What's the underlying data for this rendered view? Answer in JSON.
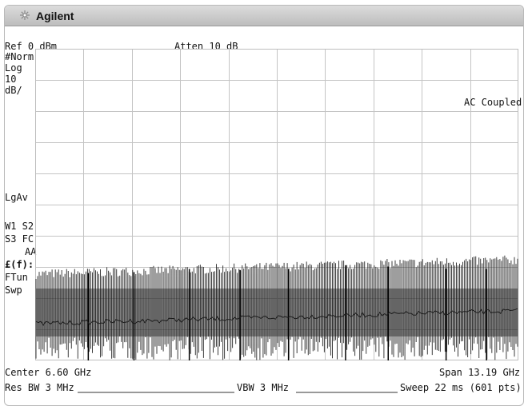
{
  "window": {
    "brand": "Agilent",
    "brand_icon": "sunburst-icon"
  },
  "header": {
    "ref_level": "Ref 0 dBm",
    "attenuation": "Atten 10 dB"
  },
  "left_panel": {
    "det_mode": "#Norm",
    "scale_type": "Log",
    "scale_value": "10",
    "scale_unit": "dB/",
    "avg_mode": "LgAv",
    "trace_line1": "W1  S2",
    "trace_line2": "S3  FC",
    "trace_line3": "AA",
    "func_label": "£(f):",
    "ftun_label": "FTun",
    "swp_label": "Swp"
  },
  "annotations": {
    "coupling": "AC Coupled"
  },
  "footer": {
    "center": "Center 6.60 GHz",
    "span": "Span 13.19 GHz",
    "res_bw": "Res BW 3 MHz",
    "vbw": "VBW 3 MHz",
    "sweep": "Sweep 22 ms (601 pts)"
  },
  "colors": {
    "trace": "#1b1b1b",
    "grid": "#c4c4c4",
    "titlebar": "#c8c8c8"
  }
}
